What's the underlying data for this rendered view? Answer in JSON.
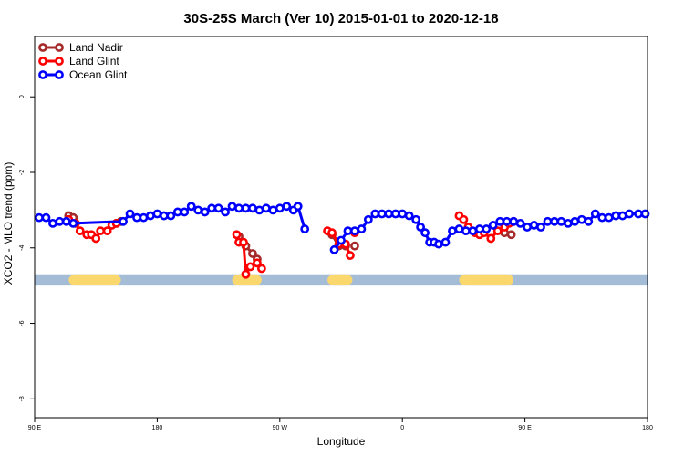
{
  "chart_data": {
    "type": "line",
    "title": "30S-25S March (Ver 10)   2015-01-01 to 2020-12-18",
    "xlabel": "Longitude",
    "ylabel": "XCO2 - MLO trend (ppm)",
    "xlim": [
      -90,
      180
    ],
    "ylim": [
      -8.5,
      1.6
    ],
    "xticks": [
      {
        "value": -90,
        "label": "90 E"
      },
      {
        "value": -36,
        "label": "180"
      },
      {
        "value": 18,
        "label": "90 W"
      },
      {
        "value": 72,
        "label": "0"
      },
      {
        "value": 126,
        "label": "90 E"
      },
      {
        "value": 180,
        "label": "180"
      }
    ],
    "yticks": [
      0,
      -2,
      -4,
      -6,
      -8
    ],
    "legend_position": "top-left",
    "land_ocean_band": {
      "y_range": [
        -5.0,
        -4.7
      ],
      "ocean_color": "#a5bcd6",
      "land_color": "#fbd86d",
      "land_x_ranges": [
        [
          -75,
          -52
        ],
        [
          -3,
          10
        ],
        [
          39,
          50
        ],
        [
          97,
          121
        ]
      ]
    },
    "series": [
      {
        "name": "Land Nadir",
        "color": "#a52a2a",
        "segments": [
          [
            [
              -75,
              -3.15
            ],
            [
              -73,
              -3.2
            ]
          ],
          [
            [
              -54,
              -3.35
            ],
            [
              -52,
              -3.3
            ]
          ],
          [
            [
              0,
              -3.7
            ],
            [
              3,
              -3.95
            ],
            [
              6,
              -4.15
            ],
            [
              8,
              -4.3
            ]
          ],
          [
            [
              41,
              -3.65
            ],
            [
              44,
              -3.95
            ],
            [
              47,
              -3.95
            ]
          ],
          [
            [
              117,
              -3.6
            ],
            [
              120,
              -3.65
            ]
          ],
          [
            [
              51,
              -3.95
            ]
          ]
        ]
      },
      {
        "name": "Land Glint",
        "color": "#ff0000",
        "segments": [
          [
            [
              -75,
              -3.25
            ],
            [
              -72,
              -3.35
            ],
            [
              -70,
              -3.55
            ],
            [
              -67,
              -3.65
            ],
            [
              -65,
              -3.65
            ],
            [
              -63,
              -3.75
            ],
            [
              -61,
              -3.55
            ],
            [
              -58,
              -3.55
            ],
            [
              -56,
              -3.4
            ],
            [
              -54,
              -3.35
            ]
          ],
          [
            [
              -1,
              -3.65
            ],
            [
              0,
              -3.85
            ],
            [
              2,
              -3.85
            ],
            [
              3,
              -4.7
            ],
            [
              5,
              -4.5
            ],
            [
              8,
              -4.4
            ],
            [
              10,
              -4.55
            ]
          ],
          [
            [
              39,
              -3.55
            ],
            [
              41,
              -3.6
            ],
            [
              44,
              -3.9
            ],
            [
              47,
              -3.9
            ],
            [
              49,
              -4.2
            ]
          ],
          [
            [
              51,
              -3.6
            ]
          ],
          [
            [
              97,
              -3.15
            ],
            [
              99,
              -3.25
            ],
            [
              101,
              -3.45
            ],
            [
              104,
              -3.6
            ],
            [
              106,
              -3.65
            ],
            [
              108,
              -3.6
            ],
            [
              111,
              -3.75
            ],
            [
              114,
              -3.55
            ],
            [
              117,
              -3.45
            ],
            [
              119,
              -3.35
            ],
            [
              121,
              -3.3
            ]
          ]
        ]
      },
      {
        "name": "Ocean Glint",
        "color": "#0000ff",
        "segments": [
          [
            [
              -88,
              -3.2
            ],
            [
              -85,
              -3.2
            ],
            [
              -82,
              -3.35
            ],
            [
              -79,
              -3.3
            ],
            [
              -76,
              -3.3
            ],
            [
              -73,
              -3.35
            ],
            [
              -51,
              -3.3
            ],
            [
              -48,
              -3.1
            ],
            [
              -45,
              -3.2
            ],
            [
              -42,
              -3.2
            ],
            [
              -39,
              -3.15
            ],
            [
              -36,
              -3.1
            ],
            [
              -33,
              -3.15
            ],
            [
              -30,
              -3.15
            ],
            [
              -27,
              -3.05
            ],
            [
              -24,
              -3.05
            ],
            [
              -21,
              -2.9
            ],
            [
              -18,
              -3.0
            ],
            [
              -15,
              -3.05
            ],
            [
              -12,
              -2.95
            ],
            [
              -9,
              -2.95
            ],
            [
              -6,
              -3.05
            ],
            [
              -3,
              -2.9
            ],
            [
              0,
              -2.95
            ],
            [
              3,
              -2.95
            ],
            [
              6,
              -2.95
            ],
            [
              9,
              -3.0
            ],
            [
              12,
              -2.95
            ],
            [
              15,
              -3.0
            ],
            [
              18,
              -2.95
            ],
            [
              21,
              -2.9
            ],
            [
              24,
              -3.0
            ],
            [
              26,
              -2.9
            ],
            [
              29,
              -3.5
            ]
          ],
          [
            [
              42,
              -4.05
            ],
            [
              45,
              -3.8
            ],
            [
              48,
              -3.55
            ],
            [
              51,
              -3.55
            ],
            [
              54,
              -3.5
            ],
            [
              57,
              -3.25
            ],
            [
              60,
              -3.1
            ],
            [
              63,
              -3.1
            ],
            [
              66,
              -3.1
            ],
            [
              69,
              -3.1
            ],
            [
              72,
              -3.1
            ],
            [
              75,
              -3.15
            ],
            [
              78,
              -3.25
            ],
            [
              80,
              -3.45
            ],
            [
              82,
              -3.6
            ],
            [
              84,
              -3.85
            ],
            [
              86,
              -3.85
            ],
            [
              88,
              -3.9
            ],
            [
              91,
              -3.85
            ],
            [
              94,
              -3.55
            ],
            [
              97,
              -3.5
            ],
            [
              100,
              -3.55
            ],
            [
              103,
              -3.55
            ],
            [
              106,
              -3.5
            ],
            [
              109,
              -3.5
            ],
            [
              112,
              -3.4
            ],
            [
              115,
              -3.3
            ],
            [
              118,
              -3.3
            ],
            [
              121,
              -3.3
            ],
            [
              124,
              -3.35
            ],
            [
              127,
              -3.45
            ],
            [
              130,
              -3.4
            ],
            [
              133,
              -3.45
            ],
            [
              136,
              -3.3
            ],
            [
              139,
              -3.3
            ],
            [
              142,
              -3.3
            ],
            [
              145,
              -3.35
            ],
            [
              148,
              -3.3
            ],
            [
              151,
              -3.25
            ],
            [
              154,
              -3.3
            ],
            [
              157,
              -3.1
            ],
            [
              160,
              -3.2
            ],
            [
              163,
              -3.2
            ],
            [
              166,
              -3.15
            ],
            [
              169,
              -3.15
            ],
            [
              172,
              -3.1
            ],
            [
              176,
              -3.1
            ],
            [
              179,
              -3.1
            ]
          ]
        ]
      }
    ]
  }
}
